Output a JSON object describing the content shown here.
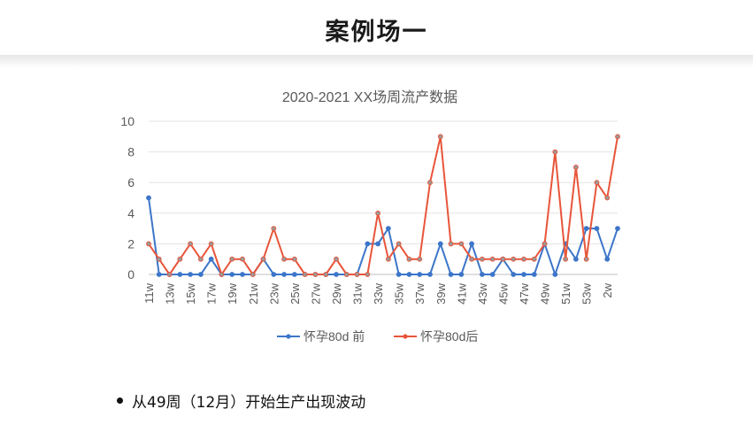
{
  "page": {
    "title": "案例场一",
    "bullet": "从49周（12月）开始生产出现波动"
  },
  "chart_data": {
    "type": "line",
    "title": "2020-2021 XX场周流产数据",
    "xlabel": "",
    "ylabel": "",
    "ylim": [
      0,
      10
    ],
    "yticks": [
      0,
      2,
      4,
      6,
      8,
      10
    ],
    "grid": true,
    "legend": "bottom",
    "categories": [
      "11w",
      "12w",
      "13w",
      "14w",
      "15w",
      "16w",
      "17w",
      "18w",
      "19w",
      "20w",
      "21w",
      "22w",
      "23w",
      "24w",
      "25w",
      "26w",
      "27w",
      "28w",
      "29w",
      "30w",
      "31w",
      "32w",
      "33w",
      "34w",
      "35w",
      "36w",
      "37w",
      "38w",
      "39w",
      "40w",
      "41w",
      "42w",
      "43w",
      "44w",
      "45w",
      "46w",
      "47w",
      "48w",
      "49w",
      "50w",
      "51w",
      "52w",
      "53w",
      "1w",
      "2w",
      "3w"
    ],
    "tick_labels": [
      "11w",
      "13w",
      "15w",
      "17w",
      "19w",
      "21w",
      "23w",
      "25w",
      "27w",
      "29w",
      "31w",
      "33w",
      "35w",
      "37w",
      "39w",
      "41w",
      "43w",
      "45w",
      "47w",
      "49w",
      "51w",
      "53w",
      "2w"
    ],
    "series": [
      {
        "name": "怀孕80d 前",
        "color": "#3d76c9",
        "values": [
          5,
          0,
          0,
          0,
          0,
          0,
          1,
          0,
          0,
          0,
          0,
          1,
          0,
          0,
          0,
          0,
          0,
          0,
          0,
          0,
          0,
          2,
          2,
          3,
          0,
          0,
          0,
          0,
          2,
          0,
          0,
          2,
          0,
          0,
          1,
          0,
          0,
          0,
          2,
          0,
          2,
          1,
          3,
          3,
          1,
          3
        ]
      },
      {
        "name": "怀孕80d后",
        "color": "#e8553a",
        "values": [
          2,
          1,
          0,
          1,
          2,
          1,
          2,
          0,
          1,
          1,
          0,
          1,
          3,
          1,
          1,
          0,
          0,
          0,
          1,
          0,
          0,
          0,
          4,
          1,
          2,
          1,
          1,
          6,
          9,
          2,
          2,
          1,
          1,
          1,
          1,
          1,
          1,
          1,
          2,
          8,
          1,
          7,
          1,
          6,
          5,
          9
        ]
      }
    ]
  }
}
